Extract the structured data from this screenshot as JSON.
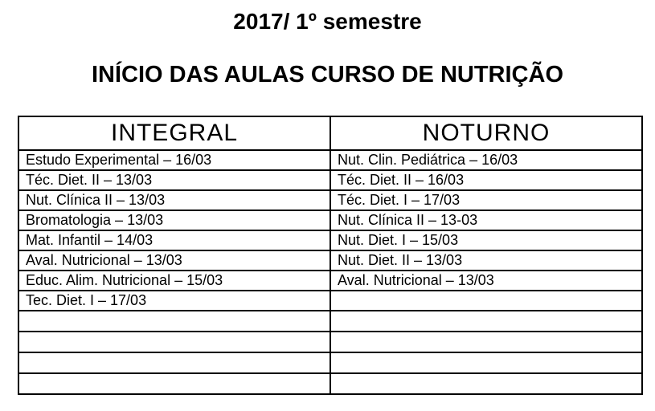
{
  "page": {
    "semester_title": "2017/ 1º semestre",
    "main_title": "INÍCIO DAS AULAS CURSO DE NUTRIÇÃO"
  },
  "colors": {
    "text": "#000000",
    "border": "#000000",
    "background": "#ffffff"
  },
  "table": {
    "columns": [
      {
        "label": "INTEGRAL"
      },
      {
        "label": "NOTURNO"
      }
    ],
    "rows": [
      {
        "integral": "Estudo Experimental – 16/03",
        "noturno": "Nut. Clin. Pediátrica – 16/03"
      },
      {
        "integral": "Téc. Diet. II – 13/03",
        "noturno": "Téc. Diet. II – 16/03"
      },
      {
        "integral": "Nut. Clínica II – 13/03",
        "noturno": "Téc. Diet. I – 17/03"
      },
      {
        "integral": "Bromatologia – 13/03",
        "noturno": "Nut. Clínica II – 13-03"
      },
      {
        "integral": "Mat. Infantil – 14/03",
        "noturno": "Nut. Diet. I – 15/03"
      },
      {
        "integral": "Aval. Nutricional – 13/03",
        "noturno": "Nut. Diet. II – 13/03"
      },
      {
        "integral": "Educ. Alim. Nutricional – 15/03",
        "noturno": "Aval. Nutricional – 13/03"
      },
      {
        "integral": "Tec. Diet. I – 17/03",
        "noturno": ""
      },
      {
        "integral": "",
        "noturno": ""
      },
      {
        "integral": "",
        "noturno": ""
      },
      {
        "integral": "",
        "noturno": ""
      },
      {
        "integral": "",
        "noturno": ""
      }
    ]
  }
}
